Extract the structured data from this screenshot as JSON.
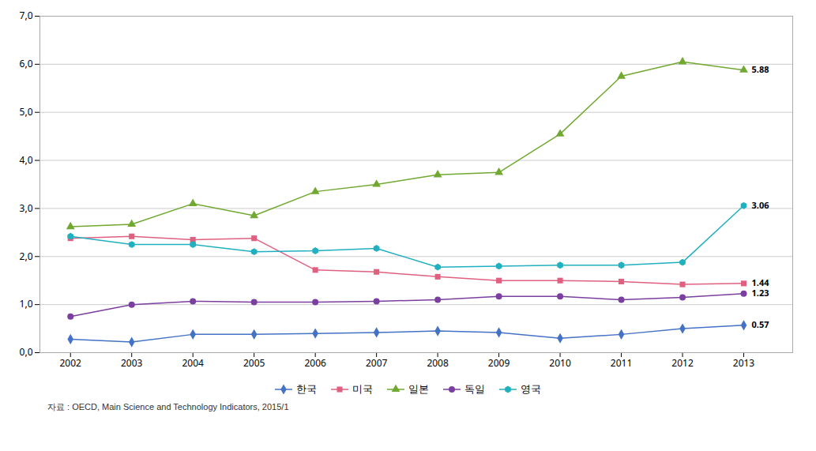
{
  "chart_data": {
    "type": "line",
    "x": [
      2002,
      2003,
      2004,
      2005,
      2006,
      2007,
      2008,
      2009,
      2010,
      2011,
      2012,
      2013
    ],
    "series": [
      {
        "name": "한국",
        "color": "#4472C4",
        "marker": "diamond",
        "values": [
          0.28,
          0.22,
          0.38,
          0.38,
          0.4,
          0.42,
          0.45,
          0.42,
          0.3,
          0.38,
          0.5,
          0.57
        ]
      },
      {
        "name": "미국",
        "color": "#E06080",
        "marker": "square",
        "values": [
          2.38,
          2.42,
          2.35,
          2.38,
          1.72,
          1.68,
          1.58,
          1.5,
          1.5,
          1.48,
          1.42,
          1.44
        ]
      },
      {
        "name": "일본",
        "color": "#70A830",
        "marker": "triangle",
        "values": [
          2.62,
          2.67,
          3.1,
          2.85,
          3.35,
          3.5,
          3.7,
          3.75,
          4.55,
          5.75,
          6.05,
          5.88
        ]
      },
      {
        "name": "독일",
        "color": "#7B3FA0",
        "marker": "circle",
        "values": [
          0.75,
          1.0,
          1.07,
          1.05,
          1.05,
          1.07,
          1.1,
          1.17,
          1.17,
          1.1,
          1.15,
          1.23
        ]
      },
      {
        "name": "영국",
        "color": "#20B0C0",
        "marker": "hexagon",
        "values": [
          2.42,
          2.25,
          2.25,
          2.1,
          2.12,
          2.17,
          1.78,
          1.8,
          1.82,
          1.82,
          1.88,
          3.06
        ]
      }
    ],
    "xlim": [
      2001.5,
      2013.8
    ],
    "xticks": [
      2002,
      2003,
      2004,
      2005,
      2006,
      2007,
      2008,
      2009,
      2010,
      2011,
      2012,
      2013
    ],
    "ylim": [
      0.0,
      7.0
    ],
    "yticks": [
      {
        "value": 0.0,
        "label": "0,0"
      },
      {
        "value": 1.0,
        "label": "1,0"
      },
      {
        "value": 2.0,
        "label": "2,0"
      },
      {
        "value": 3.0,
        "label": "3,0"
      },
      {
        "value": 4.0,
        "label": "4,0"
      },
      {
        "value": 5.0,
        "label": "5,0"
      },
      {
        "value": 6.0,
        "label": "6,0"
      },
      {
        "value": 7.0,
        "label": "7,0"
      }
    ],
    "grid": true,
    "legend": "bottom",
    "annotations": [
      {
        "text": "0.57",
        "x": 2013,
        "y": 0.57
      },
      {
        "text": "1.44",
        "x": 2013,
        "y": 1.44
      },
      {
        "text": "5.88",
        "x": 2013,
        "y": 5.88
      },
      {
        "text": "1.23",
        "x": 2013,
        "y": 1.23
      },
      {
        "text": "3.06",
        "x": 2013,
        "y": 3.06
      }
    ],
    "caption": "자료 : OECD, Main Science and Technology Indicators, 2015/1"
  }
}
